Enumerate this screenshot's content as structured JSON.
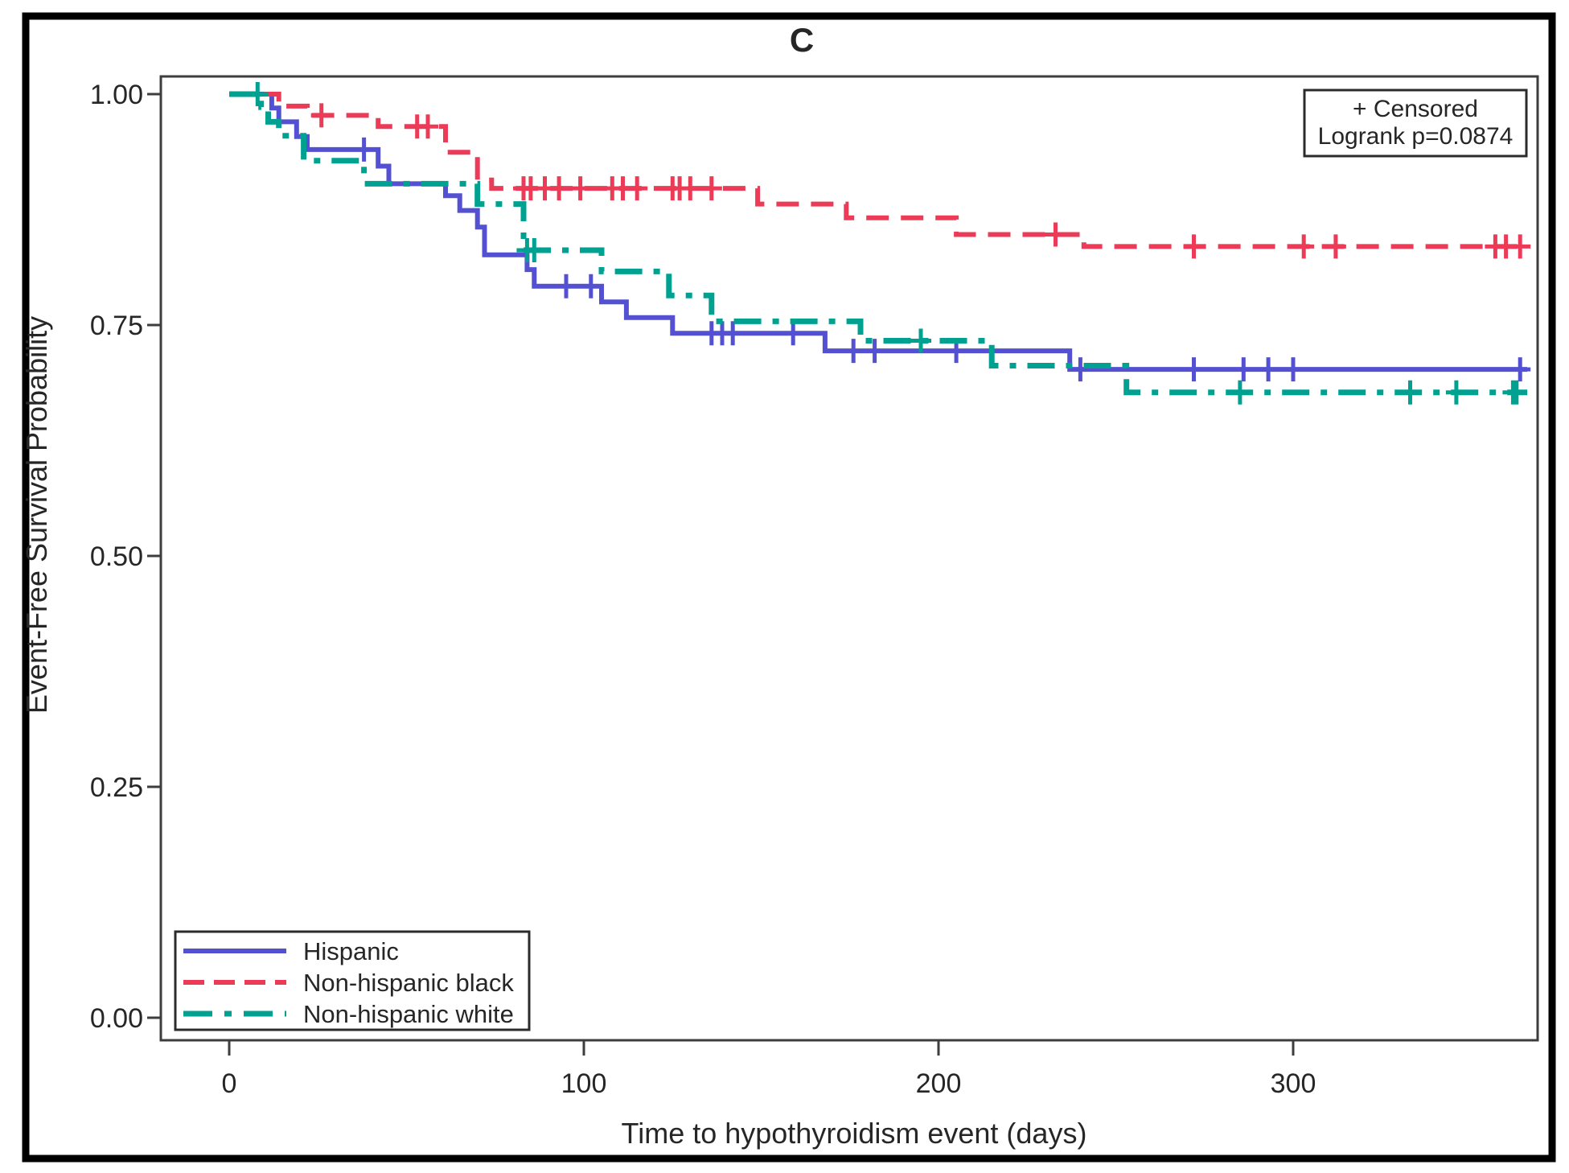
{
  "figure": {
    "panel_label": "C",
    "background_color": "#ffffff",
    "border_color": "#000000",
    "annotation_box": {
      "censored_label": "+ Censored",
      "logrank_label": "Logrank p=0.0874"
    },
    "x_axis": {
      "title": "Time to hypothyroidism event (days)",
      "tick_labels": [
        "0",
        "100",
        "200",
        "300"
      ]
    },
    "y_axis": {
      "title": "Event-Free Survival Probability",
      "tick_labels": [
        "1.00",
        "0.75",
        "0.50",
        "0.25",
        "0.00"
      ]
    },
    "legend": {
      "items": [
        {
          "label": "Hispanic"
        },
        {
          "label": "Non-hispanic black"
        },
        {
          "label": "Non-hispanic white"
        }
      ]
    }
  },
  "chart_data": {
    "type": "line",
    "subtype": "kaplan_meier_step_curves",
    "title": "C",
    "xlabel": "Time to hypothyroidism event (days)",
    "ylabel": "Event-Free Survival Probability",
    "xlim": [
      0,
      366
    ],
    "ylim": [
      0.0,
      1.0
    ],
    "x_ticks": [
      0,
      100,
      200,
      300
    ],
    "y_ticks": [
      1.0,
      0.75,
      0.5,
      0.25,
      0.0
    ],
    "grid": false,
    "legend_position": "inside-bottom-left",
    "annotations": [
      "+ Censored",
      "Logrank p=0.0874"
    ],
    "logrank_p": 0.0874,
    "censor_marker": "+",
    "series": [
      {
        "name": "Hispanic",
        "color": "#5450D2",
        "line_style": "solid",
        "end_x": 366,
        "steps": [
          [
            0,
            1.0
          ],
          [
            12,
            0.985
          ],
          [
            14,
            0.97
          ],
          [
            19,
            0.954
          ],
          [
            22,
            0.94
          ],
          [
            42,
            0.922
          ],
          [
            45,
            0.903
          ],
          [
            61,
            0.89
          ],
          [
            65,
            0.874
          ],
          [
            70,
            0.856
          ],
          [
            72,
            0.826
          ],
          [
            84,
            0.81
          ],
          [
            86,
            0.792
          ],
          [
            105,
            0.775
          ],
          [
            112,
            0.758
          ],
          [
            125,
            0.741
          ],
          [
            168,
            0.722
          ],
          [
            237,
            0.702
          ]
        ],
        "censored": [
          [
            38,
            0.94
          ],
          [
            95,
            0.792
          ],
          [
            102,
            0.792
          ],
          [
            136,
            0.741
          ],
          [
            139,
            0.741
          ],
          [
            142,
            0.741
          ],
          [
            159,
            0.741
          ],
          [
            176,
            0.722
          ],
          [
            182,
            0.722
          ],
          [
            205,
            0.722
          ],
          [
            240,
            0.702
          ],
          [
            272,
            0.702
          ],
          [
            286,
            0.702
          ],
          [
            293,
            0.702
          ],
          [
            300,
            0.702
          ],
          [
            364,
            0.702
          ]
        ]
      },
      {
        "name": "Non-hispanic black",
        "color": "#EB3B57",
        "line_style": "dashed",
        "end_x": 366,
        "steps": [
          [
            0,
            1.0
          ],
          [
            14,
            0.987
          ],
          [
            22,
            0.977
          ],
          [
            42,
            0.965
          ],
          [
            61,
            0.937
          ],
          [
            70,
            0.907
          ],
          [
            74,
            0.898
          ],
          [
            149,
            0.881
          ],
          [
            174,
            0.866
          ],
          [
            205,
            0.848
          ],
          [
            241,
            0.835
          ]
        ],
        "censored": [
          [
            26,
            0.977
          ],
          [
            53,
            0.965
          ],
          [
            56,
            0.965
          ],
          [
            83,
            0.898
          ],
          [
            85,
            0.898
          ],
          [
            89,
            0.898
          ],
          [
            93,
            0.898
          ],
          [
            99,
            0.898
          ],
          [
            108,
            0.898
          ],
          [
            111,
            0.898
          ],
          [
            115,
            0.898
          ],
          [
            125,
            0.898
          ],
          [
            127,
            0.898
          ],
          [
            130,
            0.898
          ],
          [
            136,
            0.898
          ],
          [
            233,
            0.848
          ],
          [
            272,
            0.835
          ],
          [
            303,
            0.835
          ],
          [
            312,
            0.835
          ],
          [
            357,
            0.835
          ],
          [
            360,
            0.835
          ],
          [
            364,
            0.835
          ]
        ]
      },
      {
        "name": "Non-hispanic white",
        "color": "#00A190",
        "line_style": "dashdot",
        "end_x": 366,
        "steps": [
          [
            0,
            1.0
          ],
          [
            9,
            0.986
          ],
          [
            11,
            0.97
          ],
          [
            14,
            0.955
          ],
          [
            21,
            0.928
          ],
          [
            38,
            0.903
          ],
          [
            70,
            0.881
          ],
          [
            83,
            0.831
          ],
          [
            105,
            0.808
          ],
          [
            124,
            0.782
          ],
          [
            136,
            0.754
          ],
          [
            178,
            0.733
          ],
          [
            215,
            0.706
          ],
          [
            253,
            0.677
          ]
        ],
        "censored": [
          [
            8,
            1.0
          ],
          [
            84,
            0.831
          ],
          [
            86,
            0.831
          ],
          [
            195,
            0.733
          ],
          [
            285,
            0.677
          ],
          [
            333,
            0.677
          ],
          [
            346,
            0.677
          ],
          [
            362,
            0.677
          ],
          [
            363,
            0.677
          ]
        ]
      }
    ]
  }
}
